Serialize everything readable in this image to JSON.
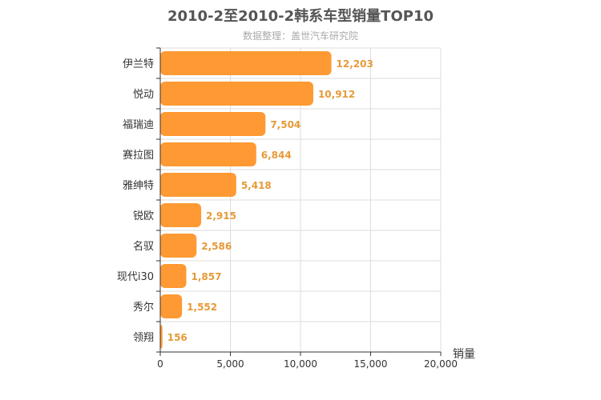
{
  "chart_data": {
    "type": "bar",
    "orientation": "horizontal",
    "title": "2010-2至2010-2韩系车型销量TOP10",
    "subtitle": "数据整理：盖世汽车研究院",
    "categories": [
      "伊兰特",
      "悦动",
      "福瑞迪",
      "赛拉图",
      "雅绅特",
      "锐欧",
      "名驭",
      "现代i30",
      "秀尔",
      "领翔"
    ],
    "values": [
      12203,
      10912,
      7504,
      6844,
      5418,
      2915,
      2586,
      1857,
      1552,
      156
    ],
    "value_labels": [
      "12,203",
      "10,912",
      "7,504",
      "6,844",
      "5,418",
      "2,915",
      "2,586",
      "1,857",
      "1,552",
      "156"
    ],
    "xlabel": "销量",
    "ylabel": "",
    "xlim": [
      0,
      20000
    ],
    "x_ticks": [
      0,
      5000,
      10000,
      15000,
      20000
    ],
    "x_tick_labels": [
      "0",
      "5,000",
      "10,000",
      "15,000",
      "20,000"
    ],
    "grid": true,
    "colors": {
      "bar": "#ff9933",
      "label": "#e69a38",
      "axis": "#333333",
      "grid": "#dddddd"
    }
  }
}
